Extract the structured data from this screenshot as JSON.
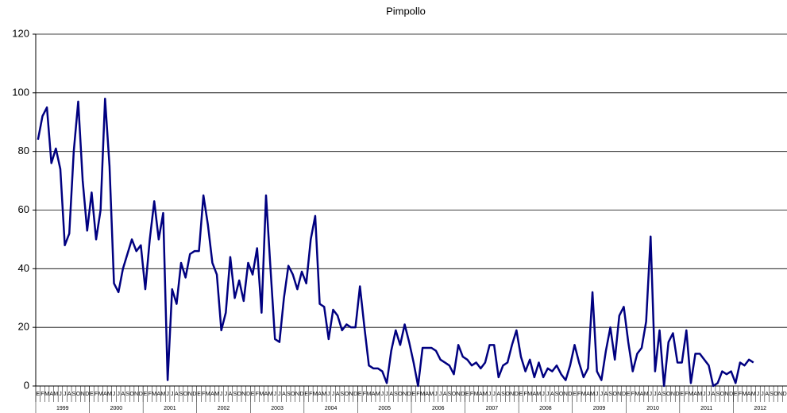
{
  "chart_data": {
    "type": "line",
    "title": "Pimpollo",
    "categories": [
      "E",
      "F",
      "M",
      "A",
      "M",
      "J",
      "J",
      "A",
      "S",
      "O",
      "N",
      "D",
      "E",
      "F",
      "M",
      "A",
      "M",
      "J",
      "J",
      "A",
      "S",
      "O",
      "N",
      "D",
      "E",
      "F",
      "M",
      "A",
      "M",
      "J",
      "J",
      "A",
      "S",
      "O",
      "N",
      "D",
      "E",
      "F",
      "M",
      "A",
      "M",
      "J",
      "J",
      "A",
      "S",
      "O",
      "N",
      "D",
      "E",
      "F",
      "M",
      "A",
      "M",
      "J",
      "J",
      "A",
      "S",
      "O",
      "N",
      "D",
      "E",
      "F",
      "M",
      "A",
      "M",
      "J",
      "J",
      "A",
      "S",
      "O",
      "N",
      "D",
      "E",
      "F",
      "M",
      "A",
      "M",
      "J",
      "J",
      "A",
      "S",
      "O",
      "N",
      "D",
      "E",
      "F",
      "M",
      "A",
      "M",
      "J",
      "J",
      "A",
      "S",
      "O",
      "N",
      "D",
      "E",
      "F",
      "M",
      "A",
      "M",
      "J",
      "J",
      "A",
      "S",
      "O",
      "N",
      "D",
      "E",
      "F",
      "M",
      "A",
      "M",
      "J",
      "J",
      "A",
      "S",
      "O",
      "N",
      "D",
      "E",
      "F",
      "M",
      "A",
      "M",
      "J",
      "J",
      "A",
      "S",
      "O",
      "N",
      "D",
      "E",
      "F",
      "M",
      "A",
      "M",
      "J",
      "J",
      "A",
      "S",
      "O",
      "N",
      "D",
      "E",
      "F",
      "M",
      "A",
      "M",
      "J",
      "J",
      "A",
      "S",
      "O",
      "N",
      "D",
      "E",
      "F",
      "M",
      "A",
      "M",
      "J",
      "J",
      "A",
      "S",
      "O",
      "N",
      "D"
    ],
    "years": [
      "1999",
      "2000",
      "2001",
      "2002",
      "2003",
      "2004",
      "2005",
      "2006",
      "2007",
      "2008",
      "2009",
      "2010",
      "2011",
      "2012"
    ],
    "series": [
      {
        "name": "Pimpollo",
        "color": "#000080",
        "values": [
          84,
          92,
          95,
          76,
          81,
          74,
          48,
          52,
          80,
          97,
          70,
          53,
          66,
          50,
          60,
          98,
          75,
          35,
          32,
          40,
          45,
          50,
          46,
          48,
          33,
          50,
          63,
          50,
          59,
          2,
          33,
          28,
          42,
          37,
          45,
          46,
          46,
          65,
          55,
          42,
          38,
          19,
          25,
          44,
          30,
          36,
          29,
          42,
          38,
          47,
          25,
          65,
          40,
          16,
          15,
          30,
          41,
          38,
          33,
          39,
          35,
          50,
          58,
          28,
          27,
          16,
          26,
          24,
          19,
          21,
          20,
          20,
          34,
          20,
          7,
          6,
          6,
          5,
          1,
          12,
          19,
          14,
          21,
          15,
          8,
          0,
          13,
          13,
          13,
          12,
          9,
          8,
          7,
          4,
          14,
          10,
          9,
          7,
          8,
          6,
          8,
          14,
          14,
          3,
          7,
          8,
          14,
          19,
          10,
          5,
          9,
          3,
          8,
          3,
          6,
          5,
          7,
          4,
          2,
          7,
          14,
          8,
          3,
          6,
          32,
          5,
          2,
          12,
          20,
          9,
          24,
          27,
          15,
          5,
          11,
          13,
          22,
          51,
          5,
          19,
          0,
          15,
          18,
          8,
          8,
          19,
          1,
          11,
          11,
          9,
          7,
          0,
          1,
          5,
          4,
          5,
          1,
          8,
          7,
          9,
          8,
          null,
          null,
          null,
          null,
          null,
          null,
          null
        ]
      }
    ],
    "ylim": [
      0,
      120
    ],
    "yticks": [
      0,
      20,
      40,
      60,
      80,
      100,
      120
    ],
    "grid": true
  }
}
